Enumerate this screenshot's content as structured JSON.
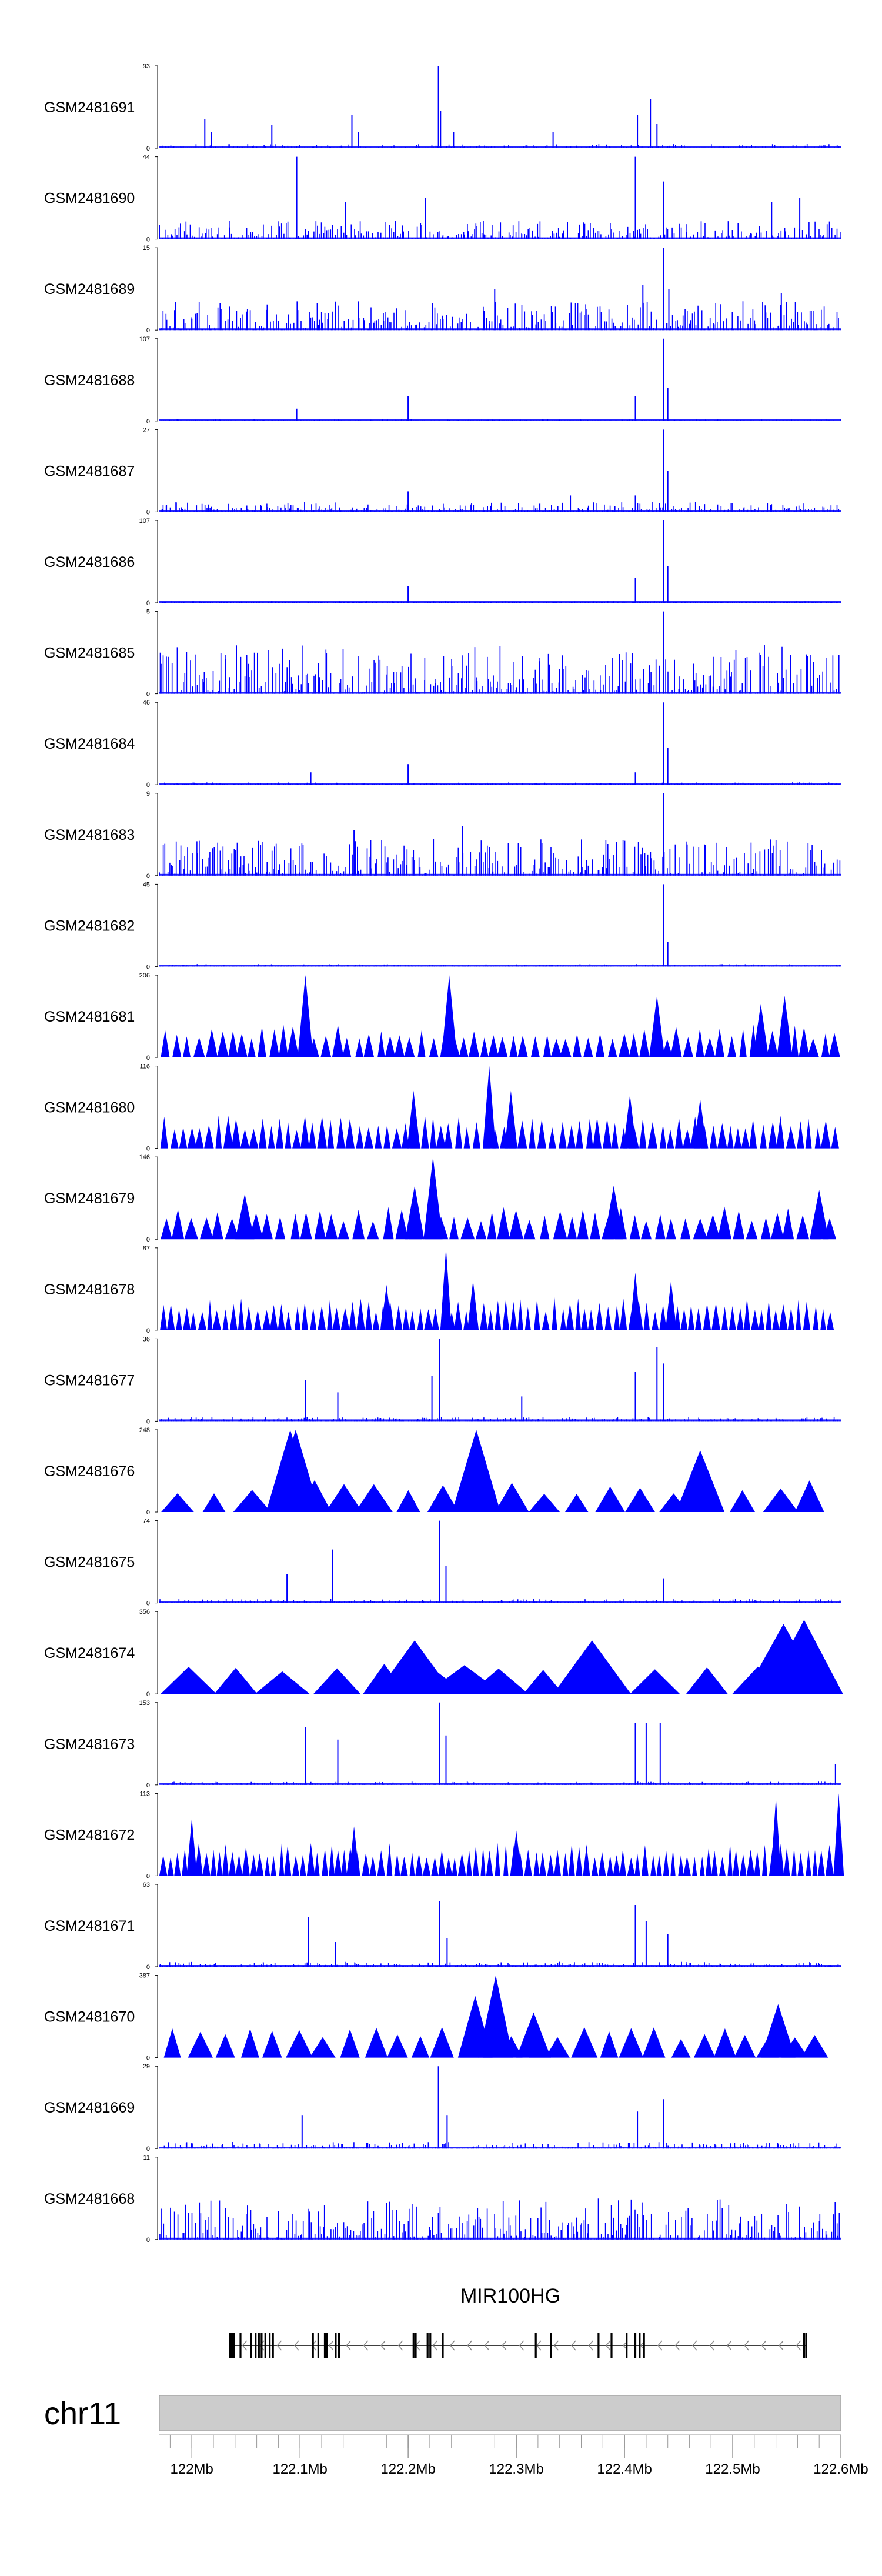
{
  "chart_data": {
    "type": "genome-browser-coverage",
    "x": {
      "unit": "bp",
      "min": 121970000,
      "max": 122600000
    },
    "colors": {
      "coverage": "#0000ff",
      "text": "#000000",
      "ideogram": "#cccccc",
      "axis": "#999999"
    },
    "tracks": [
      {
        "sample": "GSM2481691",
        "max": 93,
        "min": 0,
        "noise": 0.05,
        "density": 0.9,
        "style": "hist",
        "peaks": [
          [
            122012000,
            0.35
          ],
          [
            122018000,
            0.2
          ],
          [
            122074000,
            0.28
          ],
          [
            122148000,
            0.4
          ],
          [
            122154000,
            0.2
          ],
          [
            122228000,
            1.0
          ],
          [
            122230000,
            0.45
          ],
          [
            122242000,
            0.2
          ],
          [
            122334000,
            0.2
          ],
          [
            122412000,
            0.4
          ],
          [
            122424000,
            0.6
          ],
          [
            122430000,
            0.3
          ]
        ]
      },
      {
        "sample": "GSM2481690",
        "max": 44,
        "min": 0,
        "noise": 0.22,
        "density": 1.0,
        "style": "hist",
        "peaks": [
          [
            122097000,
            1.0
          ],
          [
            122142000,
            0.45
          ],
          [
            122216000,
            0.5
          ],
          [
            122410000,
            1.0
          ],
          [
            122436000,
            0.7
          ],
          [
            122536000,
            0.45
          ],
          [
            122562000,
            0.5
          ]
        ]
      },
      {
        "sample": "GSM2481689",
        "max": 15,
        "min": 0,
        "noise": 0.35,
        "density": 1.0,
        "style": "hist",
        "peaks": [
          [
            122417000,
            0.55
          ],
          [
            122436000,
            1.0
          ],
          [
            122441000,
            0.5
          ],
          [
            122280000,
            0.5
          ],
          [
            122545000,
            0.45
          ]
        ]
      },
      {
        "sample": "GSM2481688",
        "max": 107,
        "min": 0,
        "noise": 0.02,
        "density": 0.8,
        "style": "hist",
        "peaks": [
          [
            122097000,
            0.15
          ],
          [
            122200000,
            0.3
          ],
          [
            122410000,
            0.3
          ],
          [
            122436000,
            1.0
          ],
          [
            122440000,
            0.4
          ]
        ]
      },
      {
        "sample": "GSM2481687",
        "max": 27,
        "min": 0,
        "noise": 0.12,
        "density": 1.0,
        "style": "hist",
        "peaks": [
          [
            122200000,
            0.25
          ],
          [
            122350000,
            0.2
          ],
          [
            122410000,
            0.2
          ],
          [
            122436000,
            1.0
          ],
          [
            122440000,
            0.5
          ]
        ]
      },
      {
        "sample": "GSM2481686",
        "max": 107,
        "min": 0,
        "noise": 0.02,
        "density": 0.8,
        "style": "hist",
        "peaks": [
          [
            122200000,
            0.2
          ],
          [
            122410000,
            0.3
          ],
          [
            122436000,
            1.0
          ],
          [
            122440000,
            0.45
          ]
        ]
      },
      {
        "sample": "GSM2481685",
        "max": 5,
        "min": 0,
        "noise": 0.6,
        "density": 0.95,
        "style": "hist",
        "peaks": [
          [
            122436000,
            1.0
          ]
        ]
      },
      {
        "sample": "GSM2481684",
        "max": 46,
        "min": 0,
        "noise": 0.03,
        "density": 0.85,
        "style": "hist",
        "peaks": [
          [
            122110000,
            0.15
          ],
          [
            122200000,
            0.25
          ],
          [
            122410000,
            0.15
          ],
          [
            122436000,
            1.0
          ],
          [
            122440000,
            0.45
          ]
        ]
      },
      {
        "sample": "GSM2481683",
        "max": 9,
        "min": 0,
        "noise": 0.45,
        "density": 0.95,
        "style": "hist",
        "peaks": [
          [
            122436000,
            1.0
          ],
          [
            122250000,
            0.6
          ],
          [
            122150000,
            0.55
          ]
        ]
      },
      {
        "sample": "GSM2481682",
        "max": 45,
        "min": 0,
        "noise": 0.03,
        "density": 0.85,
        "style": "hist",
        "peaks": [
          [
            122436000,
            1.0
          ],
          [
            122440000,
            0.3
          ]
        ]
      },
      {
        "sample": "GSM2481681",
        "max": 206,
        "min": 0,
        "style": "triangles",
        "spacing": 9000,
        "peaks": [
          [
            122105000,
            1.0
          ],
          [
            122238000,
            1.0
          ],
          [
            122430000,
            0.75
          ],
          [
            122526000,
            0.65
          ],
          [
            122548000,
            0.75
          ]
        ]
      },
      {
        "sample": "GSM2481680",
        "max": 116,
        "min": 0,
        "style": "triangles",
        "spacing": 7500,
        "peaks": [
          [
            122205000,
            0.7
          ],
          [
            122275000,
            1.0
          ],
          [
            122295000,
            0.7
          ],
          [
            122405000,
            0.65
          ],
          [
            122470000,
            0.6
          ]
        ]
      },
      {
        "sample": "GSM2481679",
        "max": 146,
        "min": 0,
        "style": "triangles",
        "spacing": 11000,
        "peaks": [
          [
            122049000,
            0.55
          ],
          [
            122206000,
            0.65
          ],
          [
            122223000,
            1.0
          ],
          [
            122390000,
            0.65
          ],
          [
            122580000,
            0.6
          ]
        ]
      },
      {
        "sample": "GSM2481678",
        "max": 87,
        "min": 0,
        "style": "triangles",
        "spacing": 6500,
        "peaks": [
          [
            122180000,
            0.55
          ],
          [
            122235000,
            1.0
          ],
          [
            122260000,
            0.6
          ],
          [
            122410000,
            0.7
          ],
          [
            122443000,
            0.6
          ]
        ]
      },
      {
        "sample": "GSM2481677",
        "max": 36,
        "min": 0,
        "style": "hist",
        "noise": 0.05,
        "density": 0.9,
        "peaks": [
          [
            122105000,
            0.5
          ],
          [
            122135000,
            0.35
          ],
          [
            122222000,
            0.55
          ],
          [
            122229000,
            1.0
          ],
          [
            122305000,
            0.3
          ],
          [
            122410000,
            0.6
          ],
          [
            122430000,
            0.9
          ],
          [
            122436000,
            0.7
          ]
        ]
      },
      {
        "sample": "GSM2481676",
        "max": 248,
        "min": 0,
        "style": "triangles",
        "spacing": 28000,
        "peaks": [
          [
            122091000,
            1.0
          ],
          [
            122096000,
            1.0
          ],
          [
            122263000,
            1.0
          ],
          [
            122470000,
            0.75
          ]
        ]
      },
      {
        "sample": "GSM2481675",
        "max": 74,
        "min": 0,
        "style": "hist",
        "noise": 0.05,
        "density": 0.85,
        "peaks": [
          [
            122088000,
            0.35
          ],
          [
            122130000,
            0.65
          ],
          [
            122229000,
            1.0
          ],
          [
            122235000,
            0.45
          ],
          [
            122436000,
            0.3
          ]
        ]
      },
      {
        "sample": "GSM2481674",
        "max": 356,
        "min": 0,
        "style": "triangles",
        "spacing": 45000,
        "peaks": [
          [
            122206000,
            0.65
          ],
          [
            122252000,
            0.35
          ],
          [
            122370000,
            0.65
          ],
          [
            122547000,
            0.85
          ],
          [
            122566000,
            0.9
          ]
        ]
      },
      {
        "sample": "GSM2481673",
        "max": 153,
        "min": 0,
        "style": "hist",
        "noise": 0.04,
        "density": 0.85,
        "peaks": [
          [
            122105000,
            0.7
          ],
          [
            122135000,
            0.55
          ],
          [
            122229000,
            1.0
          ],
          [
            122235000,
            0.6
          ],
          [
            122410000,
            0.75
          ],
          [
            122420000,
            0.75
          ],
          [
            122433000,
            0.75
          ],
          [
            122595000,
            0.25
          ]
        ]
      },
      {
        "sample": "GSM2481672",
        "max": 113,
        "min": 0,
        "style": "triangles",
        "spacing": 6000,
        "peaks": [
          [
            122000000,
            0.7
          ],
          [
            122150000,
            0.6
          ],
          [
            122300000,
            0.55
          ],
          [
            122540000,
            0.95
          ],
          [
            122598000,
            1.0
          ]
        ]
      },
      {
        "sample": "GSM2481671",
        "max": 63,
        "min": 0,
        "style": "hist",
        "noise": 0.06,
        "density": 0.9,
        "peaks": [
          [
            122108000,
            0.6
          ],
          [
            122133000,
            0.3
          ],
          [
            122229000,
            0.8
          ],
          [
            122236000,
            0.35
          ],
          [
            122410000,
            0.75
          ],
          [
            122420000,
            0.55
          ],
          [
            122440000,
            0.4
          ]
        ]
      },
      {
        "sample": "GSM2481670",
        "max": 387,
        "min": 0,
        "style": "triangles",
        "spacing": 20000,
        "peaks": [
          [
            122262000,
            0.75
          ],
          [
            122281000,
            1.0
          ],
          [
            122316000,
            0.55
          ],
          [
            122542000,
            0.65
          ]
        ]
      },
      {
        "sample": "GSM2481669",
        "max": 29,
        "min": 0,
        "style": "hist",
        "noise": 0.08,
        "density": 0.9,
        "peaks": [
          [
            122102000,
            0.4
          ],
          [
            122228000,
            1.0
          ],
          [
            122236000,
            0.4
          ],
          [
            122412000,
            0.45
          ],
          [
            122436000,
            0.6
          ]
        ]
      },
      {
        "sample": "GSM2481668",
        "max": 11,
        "min": 0,
        "style": "hist",
        "noise": 0.5,
        "density": 0.95,
        "peaks": []
      }
    ],
    "gene": {
      "name": "MIR100HG",
      "strand": "-",
      "start": 122035000,
      "end": 122568000,
      "exons": [
        122035000,
        122036500,
        122037500,
        122039000,
        122045000,
        122055000,
        122059000,
        122062000,
        122064500,
        122068000,
        122072000,
        122075000,
        122112000,
        122117000,
        122123000,
        122125000,
        122133000,
        122136000,
        122205000,
        122207000,
        122218000,
        122220500,
        122232000,
        122318000,
        122332000,
        122376000,
        122388000,
        122402000,
        122410000,
        122414000,
        122418000,
        122566000,
        122568000
      ]
    },
    "ideogram": {
      "chromosome": "chr11",
      "ticks": [
        {
          "pos": 122000000,
          "label": "122Mb"
        },
        {
          "pos": 122100000,
          "label": "122.1Mb"
        },
        {
          "pos": 122200000,
          "label": "122.2Mb"
        },
        {
          "pos": 122300000,
          "label": "122.3Mb"
        },
        {
          "pos": 122400000,
          "label": "122.4Mb"
        },
        {
          "pos": 122500000,
          "label": "122.5Mb"
        },
        {
          "pos": 122600000,
          "label": "122.6Mb"
        }
      ],
      "minor_tick_step": 20000
    }
  }
}
